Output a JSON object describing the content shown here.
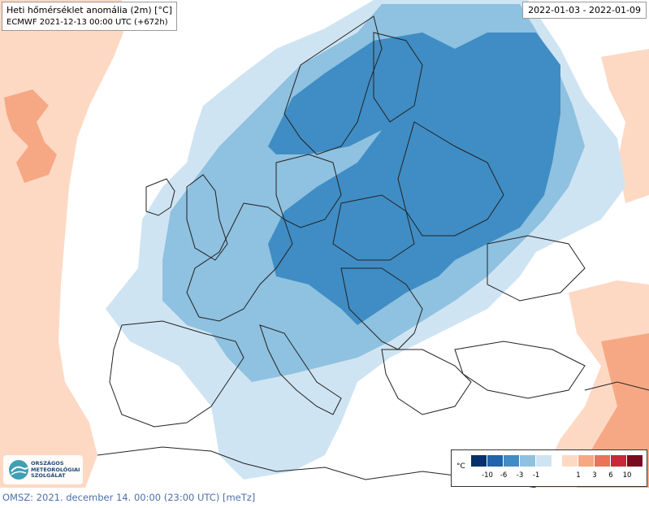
{
  "header": {
    "title": "Heti hőmérséklet anomália (2m) [°C]",
    "model_run": "ECMWF 2021-12-13 00:00 UTC (+672h)",
    "date_range": "2022-01-03 - 2022-01-09"
  },
  "legend": {
    "unit": "°C",
    "cold_labels": [
      "-10",
      "-6",
      "-3",
      "-1"
    ],
    "warm_labels": [
      "1",
      "3",
      "6",
      "10"
    ],
    "cold_colors": [
      "#08306b",
      "#1f64ac",
      "#3f8dc4",
      "#8fc1e0",
      "#cfe4f2"
    ],
    "warm_colors": [
      "#fdd9c4",
      "#f6a884",
      "#ea7358",
      "#c8283a",
      "#7a0a1e"
    ]
  },
  "logo": {
    "lines": [
      "ORSZÁGOS",
      "METEOROLÓGIAI",
      "SZOLGÁLAT"
    ]
  },
  "footer": {
    "text": "OMSZ: 2021. december 14. 00:00 (23:00  UTC)  [meTz]"
  },
  "map_colors": {
    "very_light_blue": "#cfe4f2",
    "light_blue": "#8fc1e0",
    "mid_blue": "#3f8dc4",
    "light_orange": "#fdd9c4",
    "mid_orange": "#f6a884",
    "land_outline": "#222222"
  }
}
